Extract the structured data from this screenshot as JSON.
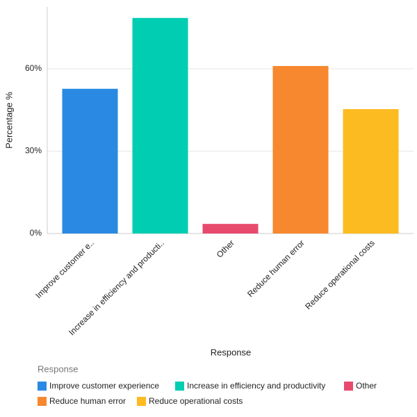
{
  "chart_data": {
    "type": "bar",
    "x_label": "Response",
    "y_label": "Percentage %",
    "categories": [
      "Improve customer e..",
      "Increase in efficiency and producti..",
      "Other",
      "Reduce human error",
      "Reduce operational costs"
    ],
    "values": [
      52.7,
      78.5,
      3.5,
      61,
      45.3
    ],
    "colors": [
      "#2a89e3",
      "#00cdb1",
      "#e84a6e",
      "#f7882f",
      "#fdbb22"
    ],
    "ylim": [
      0,
      82.5
    ],
    "yticks": [
      {
        "value": 0,
        "label": "0%"
      },
      {
        "value": 30,
        "label": "30%"
      },
      {
        "value": 60,
        "label": "60%"
      }
    ],
    "grid": true,
    "legend_title": "Response",
    "legend_labels": [
      "Improve customer experience",
      "Increase in efficiency and productivity",
      "Other",
      "Reduce human error",
      "Reduce operational costs"
    ]
  }
}
